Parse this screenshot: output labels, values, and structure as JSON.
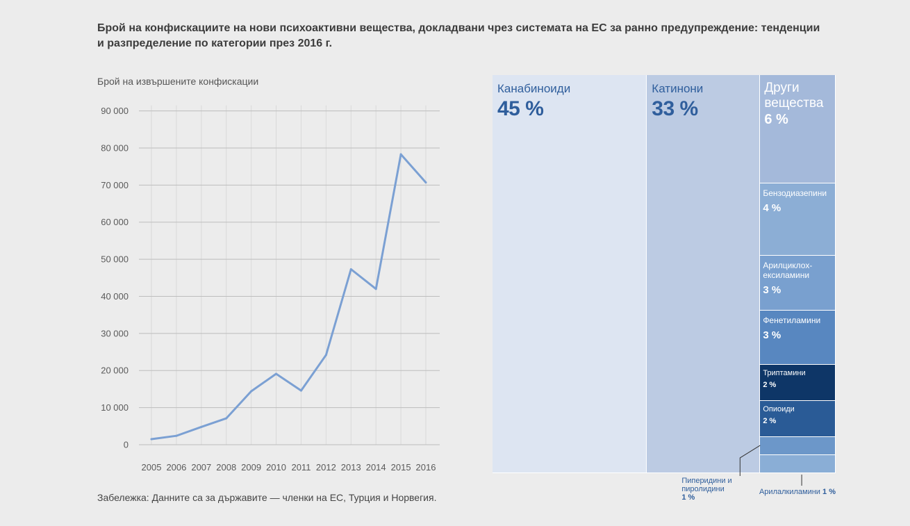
{
  "title": "Брой на конфискациите на нови психоактивни вещества, докладвани чрез системата на ЕС за ранно предупреждение: тенденции\nи разпределение по категории през 2016 г.",
  "note": "Забележка: Данните са за държавите — членки на ЕС, Турция и Норвегия.",
  "chart_data": [
    {
      "type": "line",
      "ylabel": "Брой на извършените конфискации",
      "x": [
        2005,
        2006,
        2007,
        2008,
        2009,
        2010,
        2011,
        2012,
        2013,
        2014,
        2015,
        2016
      ],
      "y": [
        1500,
        2400,
        4800,
        7100,
        14400,
        19100,
        14600,
        24200,
        47300,
        42000,
        78300,
        70700
      ],
      "ylim": [
        0,
        90000
      ],
      "yticks": [
        0,
        10000,
        20000,
        30000,
        40000,
        50000,
        60000,
        70000,
        80000,
        90000
      ],
      "ytick_labels": [
        "0",
        "10 000",
        "20 000",
        "30 000",
        "40 000",
        "50 000",
        "60 000",
        "70 000",
        "80 000",
        "90 000"
      ],
      "grid": true,
      "line_color": "#7ba0d3"
    },
    {
      "type": "pie",
      "variant": "treemap",
      "slices": [
        {
          "label": "Канабиноиди",
          "value": 45,
          "value_label": "45 %",
          "color": "#dde5f2",
          "text_color": "#2f5e9c"
        },
        {
          "label": "Катинони",
          "value": 33,
          "value_label": "33 %",
          "color": "#bccbe3",
          "text_color": "#2f5e9c"
        },
        {
          "label": "Други вещества",
          "value": 6,
          "value_label": "6 %",
          "color": "#a4b9da",
          "text_color": "#ffffff"
        },
        {
          "label": "Бензодиазепини",
          "value": 4,
          "value_label": "4 %",
          "color": "#8caed5",
          "text_color": "#ffffff"
        },
        {
          "label": "Арилциклох-ексиламини",
          "value": 3,
          "value_label": "3 %",
          "color": "#79a0cf",
          "text_color": "#ffffff"
        },
        {
          "label": "Фенетиламини",
          "value": 3,
          "value_label": "3 %",
          "color": "#5887c0",
          "text_color": "#ffffff"
        },
        {
          "label": "Триптамини",
          "value": 2,
          "value_label": "2 %",
          "color": "#0e3667",
          "text_color": "#ffffff"
        },
        {
          "label": "Опиоиди",
          "value": 2,
          "value_label": "2 %",
          "color": "#2a5b96",
          "text_color": "#ffffff"
        },
        {
          "label": "Пиперидини и пиролидини",
          "value": 1,
          "value_label": "1 %",
          "color": "#6c97c9",
          "text_color": "#2f5e9c"
        },
        {
          "label": "Арилалкиламини",
          "value": 1,
          "value_label": "1 %",
          "color": "#8aaed6",
          "text_color": "#2f5e9c"
        }
      ]
    }
  ]
}
